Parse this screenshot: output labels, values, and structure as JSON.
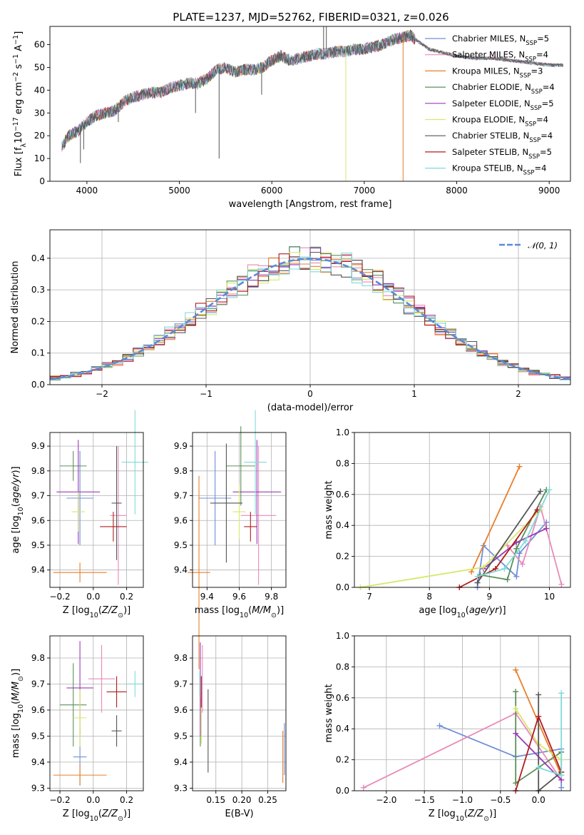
{
  "figure": {
    "title": "PLATE=1237, MJD=52762, FIBERID=0321, z=0.026"
  },
  "model_colors": [
    "#6f8fd8",
    "#e88ab8",
    "#e87f2a",
    "#5a8f5a",
    "#9b3bb5",
    "#d7e86a",
    "#555555",
    "#b01c1c",
    "#7fdad8"
  ],
  "chart_data": [
    {
      "id": "spectrum",
      "type": "line",
      "xlabel": "wavelength [Angstrom, rest frame]",
      "ylabel": "Flux [f_λ 10^-17 erg cm^-2 s^-1 A^-1]",
      "xlim": [
        3600,
        9230
      ],
      "ylim": [
        0,
        68
      ],
      "xticks": [
        4000,
        5000,
        6000,
        7000,
        8000,
        9000
      ],
      "yticks": [
        0,
        10,
        20,
        30,
        40,
        50,
        60
      ],
      "legend_position": "right",
      "legend": [
        {
          "name": "Chabrier MILES, N_SSP=5",
          "base": "Chabrier MILES, N",
          "sub": "SSP",
          "tail": "=5",
          "color": "#6f8fd8"
        },
        {
          "name": "Salpeter MILES, N_SSP=4",
          "base": "Salpeter MILES, N",
          "sub": "SSP",
          "tail": "=4",
          "color": "#e88ab8"
        },
        {
          "name": "Kroupa MILES, N_SSP=3",
          "base": "Kroupa MILES, N",
          "sub": "SSP",
          "tail": "=3",
          "color": "#e87f2a"
        },
        {
          "name": "Chabrier ELODIE, N_SSP=4",
          "base": "Chabrier ELODIE, N",
          "sub": "SSP",
          "tail": "=4",
          "color": "#5a8f5a"
        },
        {
          "name": "Salpeter ELODIE, N_SSP=5",
          "base": "Salpeter ELODIE, N",
          "sub": "SSP",
          "tail": "=5",
          "color": "#9b3bb5"
        },
        {
          "name": "Kroupa ELODIE, N_SSP=4",
          "base": "Kroupa ELODIE, N",
          "sub": "SSP",
          "tail": "=4",
          "color": "#d7e86a"
        },
        {
          "name": "Chabrier STELIB, N_SSP=4",
          "base": "Chabrier STELIB, N",
          "sub": "SSP",
          "tail": "=4",
          "color": "#555555"
        },
        {
          "name": "Salpeter STELIB, N_SSP=5",
          "base": "Salpeter STELIB, N",
          "sub": "SSP",
          "tail": "=5",
          "color": "#b01c1c"
        },
        {
          "name": "Kroupa STELIB, N_SSP=4",
          "base": "Kroupa STELIB, N",
          "sub": "SSP",
          "tail": "=4",
          "color": "#7fdad8"
        }
      ],
      "continuum": [
        [
          3730,
          15
        ],
        [
          3800,
          20
        ],
        [
          3900,
          22
        ],
        [
          4000,
          26
        ],
        [
          4100,
          29
        ],
        [
          4200,
          30
        ],
        [
          4300,
          31
        ],
        [
          4400,
          35
        ],
        [
          4500,
          37
        ],
        [
          4600,
          38
        ],
        [
          4700,
          39
        ],
        [
          4800,
          39
        ],
        [
          4900,
          41
        ],
        [
          5000,
          42
        ],
        [
          5100,
          43
        ],
        [
          5200,
          43
        ],
        [
          5300,
          45
        ],
        [
          5400,
          49
        ],
        [
          5500,
          50
        ],
        [
          5600,
          48
        ],
        [
          5700,
          49
        ],
        [
          5800,
          49
        ],
        [
          5900,
          50
        ],
        [
          6000,
          53
        ],
        [
          6100,
          55
        ],
        [
          6200,
          53
        ],
        [
          6300,
          54
        ],
        [
          6400,
          55
        ],
        [
          6500,
          56
        ],
        [
          6600,
          56
        ],
        [
          6700,
          57
        ],
        [
          6800,
          57
        ],
        [
          6900,
          58
        ],
        [
          7000,
          58
        ],
        [
          7100,
          59
        ],
        [
          7200,
          60
        ],
        [
          7300,
          62
        ],
        [
          7400,
          63
        ],
        [
          7500,
          64
        ],
        [
          7600,
          61
        ],
        [
          7700,
          58
        ],
        [
          7800,
          57
        ],
        [
          7900,
          56
        ],
        [
          8000,
          55
        ],
        [
          8200,
          54
        ],
        [
          8400,
          54
        ],
        [
          8600,
          53
        ],
        [
          8800,
          52
        ],
        [
          9000,
          51
        ],
        [
          9150,
          51
        ]
      ],
      "features": [
        {
          "x": 3930,
          "y": 8
        },
        {
          "x": 3965,
          "y": 14
        },
        {
          "x": 4340,
          "y": 26
        },
        {
          "x": 5175,
          "y": 30
        },
        {
          "x": 5430,
          "y": 10
        },
        {
          "x": 5890,
          "y": 38
        },
        {
          "x": 6563,
          "y": 55
        },
        {
          "x": 6800,
          "y": 0
        },
        {
          "x": 7420,
          "y": 0
        }
      ]
    },
    {
      "id": "residuals",
      "type": "histogram",
      "xlabel": "(data-model)/error",
      "ylabel": "Normed distribution",
      "xlim": [
        -2.5,
        2.5
      ],
      "ylim": [
        0,
        0.49
      ],
      "xticks": [
        -2,
        -1,
        0,
        1,
        2
      ],
      "yticks": [
        0.0,
        0.1,
        0.2,
        0.3,
        0.4
      ],
      "grid": true,
      "legend_position": "top-right",
      "legend": [
        {
          "name": "𝒩(0, 1)",
          "color": "#5b8bd6"
        }
      ],
      "bin_width": 0.1,
      "gaussian": {
        "mean": 0,
        "sigma": 1
      }
    },
    {
      "id": "age-vs-Z",
      "type": "errorbar",
      "xlabel": "Z [log10(Z/Z⊙)]",
      "ylabel": "age  [log10(age/yr)]",
      "xlim": [
        -0.26,
        0.3
      ],
      "ylim": [
        9.33,
        9.955
      ],
      "xticks": [
        -0.2,
        0.0,
        0.2
      ],
      "yticks": [
        9.4,
        9.5,
        9.6,
        9.7,
        9.8,
        9.9
      ],
      "grid": true,
      "points": [
        {
          "x": -0.08,
          "xerr": 0.08,
          "y": 9.69,
          "yerr": 0.19
        },
        {
          "x": 0.15,
          "xerr": 0.05,
          "y": 9.62,
          "yerr": 0.28
        },
        {
          "x": -0.08,
          "xerr": 0.16,
          "y": 9.39,
          "yerr": 0.04
        },
        {
          "x": -0.12,
          "xerr": 0.08,
          "y": 9.82,
          "yerr": 0.06
        },
        {
          "x": -0.09,
          "xerr": 0.13,
          "y": 9.715,
          "yerr": 0.21
        },
        {
          "x": -0.09,
          "xerr": 0.04,
          "y": 9.635,
          "yerr": 0.08
        },
        {
          "x": 0.14,
          "xerr": 0.03,
          "y": 9.67,
          "yerr": 0.23
        },
        {
          "x": 0.12,
          "xerr": 0.08,
          "y": 9.575,
          "yerr": 0.06
        },
        {
          "x": 0.25,
          "xerr": 0.08,
          "y": 9.835,
          "yerr": 0.21
        }
      ]
    },
    {
      "id": "age-vs-mass",
      "type": "errorbar",
      "xlabel": "mass [log10(M/M⊙)]",
      "ylabel": "",
      "xlim": [
        9.31,
        9.89
      ],
      "ylim": [
        9.33,
        9.955
      ],
      "xticks": [
        9.4,
        9.6,
        9.8
      ],
      "yticks": [
        9.4,
        9.5,
        9.6,
        9.7,
        9.8,
        9.9
      ],
      "grid": true,
      "points": [
        {
          "x": 9.45,
          "xerr": 0.1,
          "y": 9.69,
          "yerr": 0.19
        },
        {
          "x": 9.72,
          "xerr": 0.11,
          "y": 9.62,
          "yerr": 0.28
        },
        {
          "x": 9.35,
          "xerr": 0.07,
          "y": 9.39,
          "yerr": 0.39
        },
        {
          "x": 9.61,
          "xerr": 0.09,
          "y": 9.82,
          "yerr": 0.16
        },
        {
          "x": 9.71,
          "xerr": 0.15,
          "y": 9.715,
          "yerr": 0.21
        },
        {
          "x": 9.6,
          "xerr": 0.04,
          "y": 9.635,
          "yerr": 0.11
        },
        {
          "x": 9.52,
          "xerr": 0.1,
          "y": 9.67,
          "yerr": 0.24
        },
        {
          "x": 9.67,
          "xerr": 0.04,
          "y": 9.575,
          "yerr": 0.06
        },
        {
          "x": 9.7,
          "xerr": 0.07,
          "y": 9.835,
          "yerr": 0.21
        }
      ]
    },
    {
      "id": "weight-vs-age",
      "type": "line",
      "xlabel": "age  [log10(age/yr)]",
      "ylabel": "mass weight",
      "xlim": [
        6.75,
        10.35
      ],
      "ylim": [
        0,
        1.0
      ],
      "xticks": [
        7,
        8,
        9,
        10
      ],
      "yticks": [
        0.0,
        0.2,
        0.4,
        0.6,
        0.8,
        1.0
      ],
      "grid": true,
      "series": [
        {
          "points": [
            [
              8.8,
              0.0
            ],
            [
              8.9,
              0.27
            ],
            [
              9.45,
              0.07
            ],
            [
              9.5,
              0.22
            ],
            [
              9.95,
              0.42
            ]
          ]
        },
        {
          "points": [
            [
              9.3,
              0.27
            ],
            [
              9.55,
              0.15
            ],
            [
              9.85,
              0.52
            ],
            [
              10.2,
              0.02
            ]
          ]
        },
        {
          "points": [
            [
              8.7,
              0.1
            ],
            [
              9.5,
              0.78
            ]
          ]
        },
        {
          "points": [
            [
              8.85,
              0.08
            ],
            [
              9.3,
              0.05
            ],
            [
              9.45,
              0.25
            ],
            [
              9.95,
              0.63
            ]
          ]
        },
        {
          "points": [
            [
              8.9,
              0.12
            ],
            [
              9.45,
              0.29
            ],
            [
              9.95,
              0.38
            ]
          ]
        },
        {
          "points": [
            [
              6.85,
              0.0
            ],
            [
              8.9,
              0.13
            ],
            [
              9.85,
              0.5
            ]
          ]
        },
        {
          "points": [
            [
              8.8,
              0.03
            ],
            [
              9.85,
              0.62
            ]
          ]
        },
        {
          "points": [
            [
              8.5,
              0.0
            ],
            [
              9.1,
              0.12
            ],
            [
              9.8,
              0.5
            ]
          ]
        },
        {
          "points": [
            [
              8.8,
              0.07
            ],
            [
              9.25,
              0.12
            ],
            [
              9.6,
              0.3
            ],
            [
              10.0,
              0.63
            ]
          ]
        }
      ]
    },
    {
      "id": "mass-vs-Z",
      "type": "errorbar",
      "xlabel": "Z [log10(Z/Z⊙)]",
      "ylabel": "mass [log10(M/M⊙)]",
      "xlim": [
        -0.26,
        0.3
      ],
      "ylim": [
        9.29,
        9.885
      ],
      "xticks": [
        -0.2,
        0.0,
        0.2
      ],
      "yticks": [
        9.3,
        9.4,
        9.5,
        9.6,
        9.7,
        9.8
      ],
      "grid": true,
      "points": [
        {
          "x": -0.08,
          "xerr": 0.04,
          "y": 9.42,
          "yerr": 0.11
        },
        {
          "x": 0.05,
          "xerr": 0.08,
          "y": 9.72,
          "yerr": 0.13
        },
        {
          "x": -0.08,
          "xerr": 0.16,
          "y": 9.35,
          "yerr": 0.04
        },
        {
          "x": -0.12,
          "xerr": 0.08,
          "y": 9.62,
          "yerr": 0.16
        },
        {
          "x": -0.08,
          "xerr": 0.08,
          "y": 9.685,
          "yerr": 0.18
        },
        {
          "x": -0.08,
          "xerr": 0.04,
          "y": 9.57,
          "yerr": 0.11
        },
        {
          "x": 0.14,
          "xerr": 0.03,
          "y": 9.52,
          "yerr": 0.06
        },
        {
          "x": 0.14,
          "xerr": 0.06,
          "y": 9.67,
          "yerr": 0.06
        },
        {
          "x": 0.25,
          "xerr": 0.05,
          "y": 9.7,
          "yerr": 0.05
        }
      ]
    },
    {
      "id": "mass-vs-EBV",
      "type": "errorbar",
      "xlabel": "E(B-V)",
      "ylabel": "",
      "xlim": [
        0.105,
        0.285
      ],
      "ylim": [
        9.29,
        9.885
      ],
      "xticks": [
        0.15,
        0.2,
        0.25
      ],
      "yticks": [
        9.3,
        9.4,
        9.5,
        9.6,
        9.7,
        9.8
      ],
      "grid": true,
      "points": [
        {
          "x": 0.282,
          "xerr": 0,
          "y": 9.45,
          "yerr": 0.1
        },
        {
          "x": 0.124,
          "xerr": 0,
          "y": 9.72,
          "yerr": 0.13
        },
        {
          "x": 0.279,
          "xerr": 0,
          "y": 9.42,
          "yerr": 0.1
        },
        {
          "x": 0.12,
          "xerr": 0,
          "y": 9.6,
          "yerr": 0.14
        },
        {
          "x": 0.12,
          "xerr": 0,
          "y": 9.68,
          "yerr": 0.18
        },
        {
          "x": 0.122,
          "xerr": 0,
          "y": 9.57,
          "yerr": 0.1
        },
        {
          "x": 0.135,
          "xerr": 0,
          "y": 9.52,
          "yerr": 0.16
        },
        {
          "x": 0.122,
          "xerr": 0,
          "y": 9.67,
          "yerr": 0.06
        },
        {
          "x": 0.119,
          "xerr": 0,
          "y": 9.7,
          "yerr": 0.05
        }
      ]
    },
    {
      "id": "weight-vs-Z",
      "type": "line",
      "xlabel": "Z [log10(Z/Z⊙)]",
      "ylabel": "mass weight",
      "xlim": [
        -2.42,
        0.42
      ],
      "ylim": [
        0,
        1.0
      ],
      "xticks": [
        -2.0,
        -1.5,
        -1.0,
        -0.5,
        0.0
      ],
      "yticks": [
        0.0,
        0.2,
        0.4,
        0.6,
        0.8,
        1.0
      ],
      "grid": true,
      "series": [
        {
          "points": [
            [
              -1.3,
              0.42
            ],
            [
              -0.3,
              0.22
            ],
            [
              0.3,
              0.27
            ],
            [
              0.3,
              0.02
            ]
          ]
        },
        {
          "points": [
            [
              -2.3,
              0.02
            ],
            [
              -0.3,
              0.5
            ],
            [
              0.3,
              0.07
            ]
          ]
        },
        {
          "points": [
            [
              -0.3,
              0.78
            ],
            [
              0.3,
              0.1
            ]
          ]
        },
        {
          "points": [
            [
              -0.3,
              0.64
            ],
            [
              -0.3,
              0.05
            ],
            [
              0.3,
              0.25
            ]
          ]
        },
        {
          "points": [
            [
              -0.3,
              0.37
            ],
            [
              0.3,
              0.07
            ]
          ]
        },
        {
          "points": [
            [
              -0.3,
              0.53
            ],
            [
              0.0,
              0.3
            ],
            [
              0.3,
              0.2
            ]
          ]
        },
        {
          "points": [
            [
              0.0,
              0.62
            ],
            [
              0.0,
              0.0
            ],
            [
              0.3,
              0.12
            ]
          ]
        },
        {
          "points": [
            [
              -0.3,
              0.0
            ],
            [
              0.0,
              0.48
            ],
            [
              0.3,
              0.12
            ]
          ]
        },
        {
          "points": [
            [
              0.3,
              0.63
            ],
            [
              0.3,
              0.1
            ],
            [
              0.0,
              0.15
            ]
          ]
        }
      ]
    }
  ]
}
